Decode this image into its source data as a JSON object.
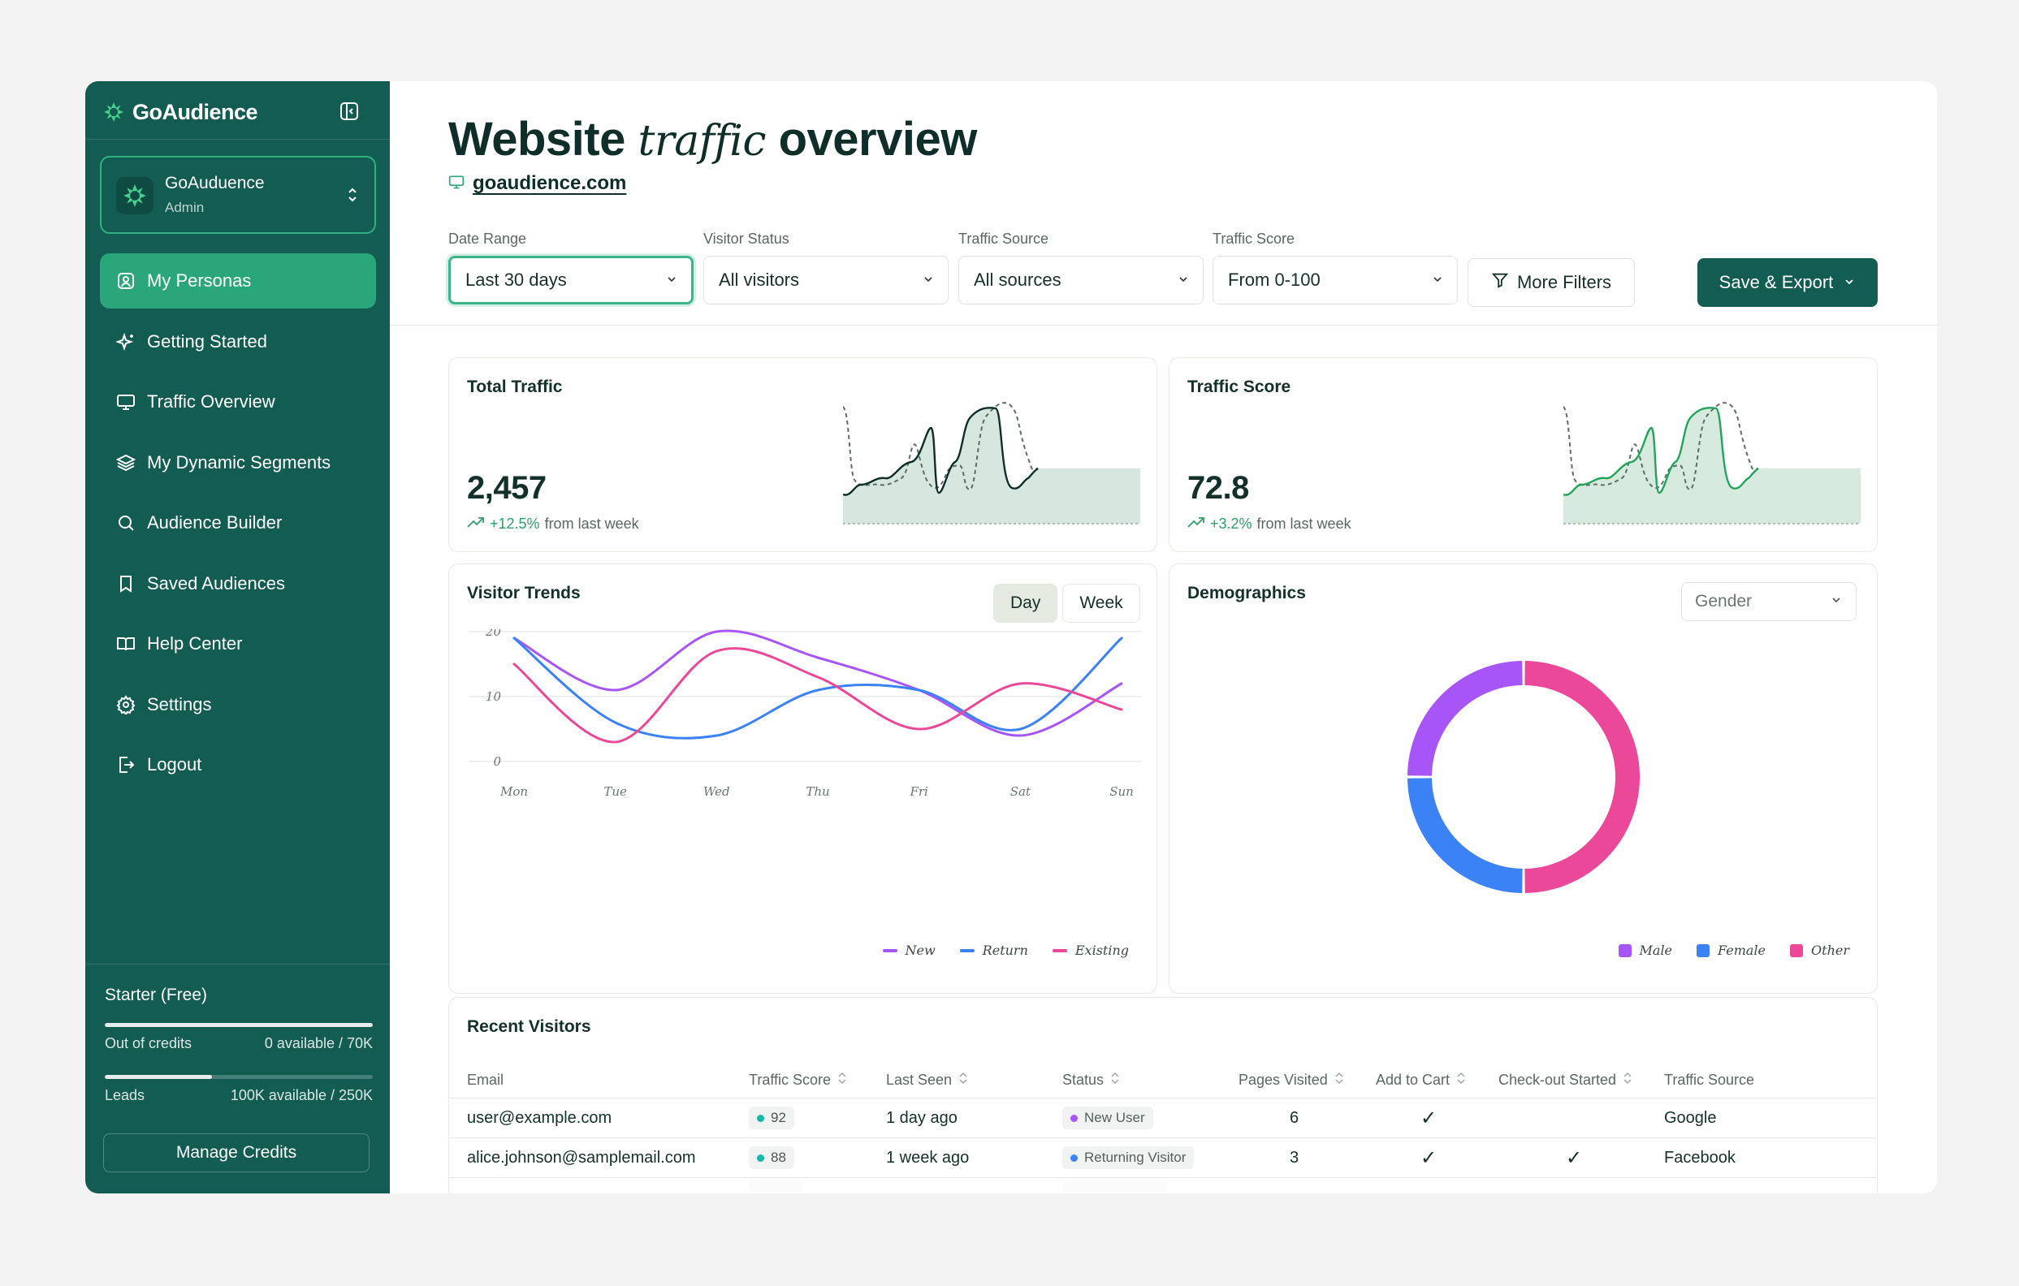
{
  "app": {
    "brand": "GoAudience",
    "workspace": {
      "name": "GoAuduence",
      "role": "Admin"
    }
  },
  "sidebar": {
    "items": [
      {
        "label": "My Personas",
        "icon": "user-square-icon",
        "active": true
      },
      {
        "label": "Getting Started",
        "icon": "sparkles-icon"
      },
      {
        "label": "Traffic Overview",
        "icon": "monitor-icon"
      },
      {
        "label": "My Dynamic Segments",
        "icon": "layers-icon"
      },
      {
        "label": "Audience Builder",
        "icon": "search-icon"
      },
      {
        "label": "Saved Audiences",
        "icon": "bookmark-icon"
      },
      {
        "label": "Help Center",
        "icon": "book-open-icon"
      },
      {
        "label": "Settings",
        "icon": "gear-icon"
      },
      {
        "label": "Logout",
        "icon": "logout-icon"
      }
    ],
    "plan": {
      "title": "Starter (Free)",
      "credits_label": "Out of credits",
      "credits_value": "0 available / 70K",
      "credits_progress": 1.0,
      "leads_label": "Leads",
      "leads_value": "100K available / 250K",
      "leads_progress": 0.4,
      "manage_label": "Manage Credits"
    }
  },
  "header": {
    "title_part1": "Website",
    "title_italic": "traffic",
    "title_part2": "overview",
    "domain": "goaudience.com"
  },
  "filters": {
    "date_range": {
      "label": "Date Range",
      "value": "Last 30 days"
    },
    "visitor_status": {
      "label": "Visitor Status",
      "value": "All visitors"
    },
    "traffic_source": {
      "label": "Traffic Source",
      "value": "All sources"
    },
    "traffic_score": {
      "label": "Traffic Score",
      "value": "From 0-100"
    },
    "more_filters": "More Filters",
    "save_export": "Save & Export"
  },
  "cards": {
    "total_traffic": {
      "title": "Total Traffic",
      "value": "2,457",
      "delta": "+12.5%",
      "delta_text": "from last week"
    },
    "traffic_score": {
      "title": "Traffic Score",
      "value": "72.8",
      "delta": "+3.2%",
      "delta_text": "from last week"
    },
    "visitor_trends": {
      "title": "Visitor Trends",
      "toggle": [
        "Day",
        "Week"
      ],
      "active_toggle": "Day"
    },
    "demographics": {
      "title": "Demographics",
      "select_value": "Gender"
    }
  },
  "colors": {
    "sidebar_bg": "#135c52",
    "accent": "#2aa77a",
    "new": "#a855f7",
    "return": "#3b82f6",
    "existing": "#ec4899"
  },
  "chart_data": [
    {
      "type": "line",
      "title": "Visitor Trends",
      "x": [
        "Mon",
        "Tue",
        "Wed",
        "Thu",
        "Fri",
        "Sat",
        "Sun"
      ],
      "ylim": [
        0,
        20
      ],
      "yticks": [
        0,
        10,
        20
      ],
      "series": [
        {
          "name": "New",
          "color": "#a855f7",
          "values": [
            19,
            11,
            20,
            16,
            11,
            4,
            12
          ]
        },
        {
          "name": "Return",
          "color": "#3b82f6",
          "values": [
            19,
            6,
            4,
            11,
            11,
            5,
            19
          ]
        },
        {
          "name": "Existing",
          "color": "#ec4899",
          "values": [
            15,
            3,
            17,
            13,
            5,
            12,
            8
          ]
        }
      ],
      "legend_position": "bottom-right"
    },
    {
      "type": "pie",
      "title": "Demographics",
      "categories": [
        "Male",
        "Female",
        "Other"
      ],
      "values": [
        25,
        25,
        50
      ],
      "colors": [
        "#a855f7",
        "#3b82f6",
        "#ec4899"
      ],
      "legend_position": "bottom-right"
    }
  ],
  "recent_visitors": {
    "title": "Recent Visitors",
    "columns": [
      "Email",
      "Traffic Score",
      "Last Seen",
      "Status",
      "Pages Visited",
      "Add to Cart",
      "Check-out Started",
      "Traffic Source"
    ],
    "rows": [
      {
        "email": "user@example.com",
        "score": "92",
        "last_seen": "1 day ago",
        "status": "New User",
        "status_color": "#a855f7",
        "pages": "6",
        "cart": "✓",
        "checkout": "",
        "source": "Google"
      },
      {
        "email": "alice.johnson@samplemail.com",
        "score": "88",
        "last_seen": "1 week ago",
        "status": "Returning Visitor",
        "status_color": "#3b82f6",
        "pages": "3",
        "cart": "✓",
        "checkout": "✓",
        "source": "Facebook"
      }
    ]
  }
}
